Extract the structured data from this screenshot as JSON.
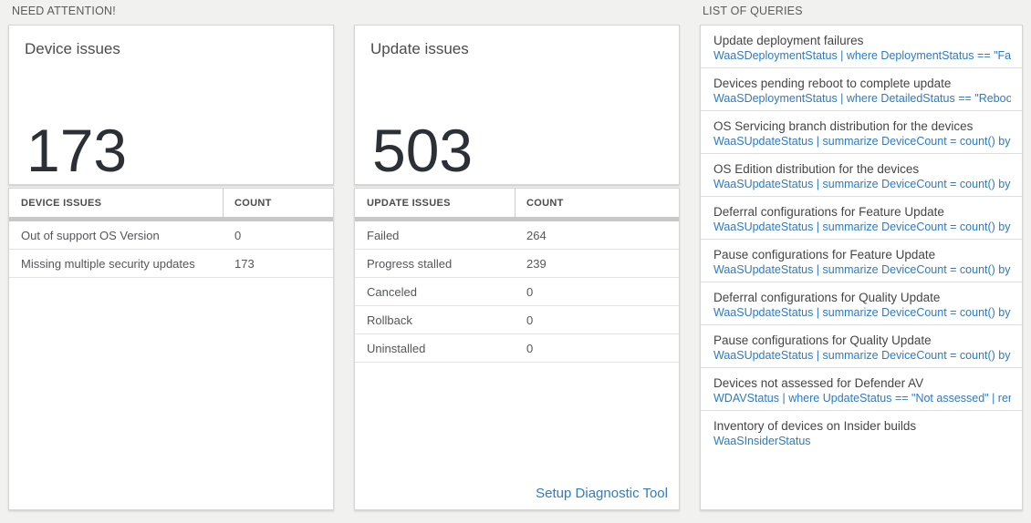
{
  "sections": {
    "need_attention": "NEED ATTENTION!",
    "list_of_queries": "LIST OF QUERIES"
  },
  "device_card": {
    "title": "Device issues",
    "count": "173",
    "table": {
      "header_issue": "DEVICE ISSUES",
      "header_count": "COUNT",
      "rows": [
        {
          "label": "Out of support OS Version",
          "count": "0"
        },
        {
          "label": "Missing multiple security updates",
          "count": "173"
        }
      ]
    }
  },
  "update_card": {
    "title": "Update issues",
    "count": "503",
    "table": {
      "header_issue": "UPDATE ISSUES",
      "header_count": "COUNT",
      "rows": [
        {
          "label": "Failed",
          "count": "264"
        },
        {
          "label": "Progress stalled",
          "count": "239"
        },
        {
          "label": "Canceled",
          "count": "0"
        },
        {
          "label": "Rollback",
          "count": "0"
        },
        {
          "label": "Uninstalled",
          "count": "0"
        }
      ]
    },
    "setup_link": "Setup Diagnostic Tool"
  },
  "queries": {
    "items": [
      {
        "title": "Update deployment failures",
        "query": "WaaSDeploymentStatus | where DeploymentStatus == \"Failed\" |..."
      },
      {
        "title": "Devices pending reboot to complete update",
        "query": "WaaSDeploymentStatus | where DetailedStatus == \"Reboot pend..."
      },
      {
        "title": "OS Servicing branch distribution for the devices",
        "query": "WaaSUpdateStatus | summarize DeviceCount = count() by OSSer..."
      },
      {
        "title": "OS Edition distribution for the devices",
        "query": "WaaSUpdateStatus | summarize DeviceCount = count() by OSEdit..."
      },
      {
        "title": "Deferral configurations for Feature Update",
        "query": "WaaSUpdateStatus | summarize DeviceCount = count() by Featur..."
      },
      {
        "title": "Pause configurations for Feature Update",
        "query": "WaaSUpdateStatus | summarize DeviceCount = count() by Featur..."
      },
      {
        "title": "Deferral configurations for Quality Update",
        "query": "WaaSUpdateStatus | summarize DeviceCount = count() by Qualit..."
      },
      {
        "title": "Pause configurations for Quality Update",
        "query": "WaaSUpdateStatus | summarize DeviceCount = count() by Qualit..."
      },
      {
        "title": "Devices not assessed for Defender AV",
        "query": "WDAVStatus | where UpdateStatus == \"Not assessed\" | render ta..."
      },
      {
        "title": "Inventory of devices on Insider builds",
        "query": "WaaSInsiderStatus"
      }
    ]
  },
  "colors": {
    "accent_blue": "#2e7ac2",
    "page_background": "#f1f1f0",
    "big_number_text": "#2b3036",
    "scroll_strip": "#c8c8c8"
  }
}
